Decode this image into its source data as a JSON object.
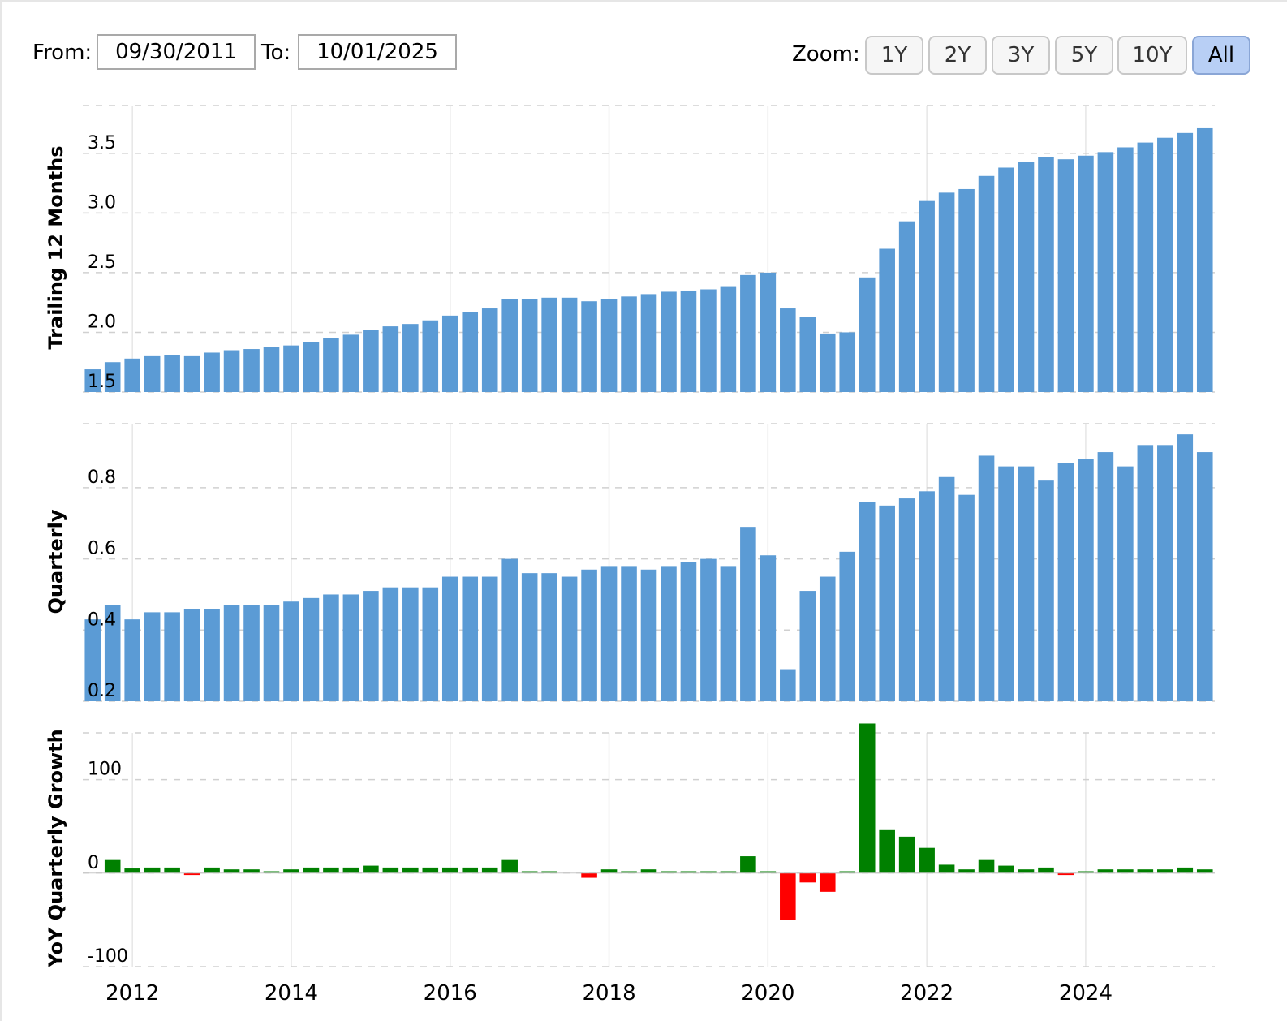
{
  "controls": {
    "from_label": "From:",
    "from_value": "09/30/2011",
    "to_label": "To:",
    "to_value": "10/01/2025",
    "zoom_label": "Zoom:",
    "zoom_buttons": [
      "1Y",
      "2Y",
      "3Y",
      "5Y",
      "10Y",
      "All"
    ],
    "zoom_active": "All"
  },
  "chart_data": [
    {
      "type": "bar",
      "ylabel": "Trailing 12 Months",
      "ylim": [
        1.5,
        3.9
      ],
      "yticks": [
        "1.5",
        "2.0",
        "2.5",
        "3.0",
        "3.5"
      ],
      "bar_color": "#5b9bd5",
      "grid": true,
      "x": [
        "2011-Q3",
        "2011-Q4",
        "2012-Q1",
        "2012-Q2",
        "2012-Q3",
        "2012-Q4",
        "2013-Q1",
        "2013-Q2",
        "2013-Q3",
        "2013-Q4",
        "2014-Q1",
        "2014-Q2",
        "2014-Q3",
        "2014-Q4",
        "2015-Q1",
        "2015-Q2",
        "2015-Q3",
        "2015-Q4",
        "2016-Q1",
        "2016-Q2",
        "2016-Q3",
        "2016-Q4",
        "2017-Q1",
        "2017-Q2",
        "2017-Q3",
        "2017-Q4",
        "2018-Q1",
        "2018-Q2",
        "2018-Q3",
        "2018-Q4",
        "2019-Q1",
        "2019-Q2",
        "2019-Q3",
        "2019-Q4",
        "2020-Q1",
        "2020-Q2",
        "2020-Q3",
        "2020-Q4",
        "2021-Q1",
        "2021-Q2",
        "2021-Q3",
        "2021-Q4",
        "2022-Q1",
        "2022-Q2",
        "2022-Q3",
        "2022-Q4",
        "2023-Q1",
        "2023-Q2",
        "2023-Q3",
        "2023-Q4",
        "2024-Q1",
        "2024-Q2",
        "2024-Q3",
        "2024-Q4",
        "2025-Q1",
        "2025-Q2",
        "2025-Q3"
      ],
      "values": [
        1.69,
        1.75,
        1.78,
        1.8,
        1.81,
        1.8,
        1.83,
        1.85,
        1.86,
        1.88,
        1.89,
        1.92,
        1.95,
        1.98,
        2.02,
        2.05,
        2.07,
        2.1,
        2.14,
        2.17,
        2.2,
        2.28,
        2.28,
        2.29,
        2.29,
        2.26,
        2.28,
        2.3,
        2.32,
        2.34,
        2.35,
        2.36,
        2.38,
        2.48,
        2.5,
        2.2,
        2.13,
        1.99,
        2.0,
        2.46,
        2.7,
        2.93,
        3.1,
        3.17,
        3.2,
        3.31,
        3.38,
        3.43,
        3.47,
        3.45,
        3.48,
        3.51,
        3.55,
        3.59,
        3.63,
        3.67,
        3.71
      ]
    },
    {
      "type": "bar",
      "ylabel": "Quarterly",
      "ylim": [
        0.2,
        0.98
      ],
      "yticks": [
        "0.2",
        "0.4",
        "0.6",
        "0.8"
      ],
      "bar_color": "#5b9bd5",
      "grid": true,
      "x": [
        "2011-Q3",
        "2011-Q4",
        "2012-Q1",
        "2012-Q2",
        "2012-Q3",
        "2012-Q4",
        "2013-Q1",
        "2013-Q2",
        "2013-Q3",
        "2013-Q4",
        "2014-Q1",
        "2014-Q2",
        "2014-Q3",
        "2014-Q4",
        "2015-Q1",
        "2015-Q2",
        "2015-Q3",
        "2015-Q4",
        "2016-Q1",
        "2016-Q2",
        "2016-Q3",
        "2016-Q4",
        "2017-Q1",
        "2017-Q2",
        "2017-Q3",
        "2017-Q4",
        "2018-Q1",
        "2018-Q2",
        "2018-Q3",
        "2018-Q4",
        "2019-Q1",
        "2019-Q2",
        "2019-Q3",
        "2019-Q4",
        "2020-Q1",
        "2020-Q2",
        "2020-Q3",
        "2020-Q4",
        "2021-Q1",
        "2021-Q2",
        "2021-Q3",
        "2021-Q4",
        "2022-Q1",
        "2022-Q2",
        "2022-Q3",
        "2022-Q4",
        "2023-Q1",
        "2023-Q2",
        "2023-Q3",
        "2023-Q4",
        "2024-Q1",
        "2024-Q2",
        "2024-Q3",
        "2024-Q4",
        "2025-Q1",
        "2025-Q2",
        "2025-Q3"
      ],
      "values": [
        0.43,
        0.47,
        0.43,
        0.45,
        0.45,
        0.46,
        0.46,
        0.47,
        0.47,
        0.47,
        0.48,
        0.49,
        0.5,
        0.5,
        0.51,
        0.52,
        0.52,
        0.52,
        0.55,
        0.55,
        0.55,
        0.6,
        0.56,
        0.56,
        0.55,
        0.57,
        0.58,
        0.58,
        0.57,
        0.58,
        0.59,
        0.6,
        0.58,
        0.69,
        0.61,
        0.29,
        0.51,
        0.55,
        0.62,
        0.76,
        0.75,
        0.77,
        0.79,
        0.83,
        0.78,
        0.89,
        0.86,
        0.86,
        0.82,
        0.87,
        0.88,
        0.9,
        0.86,
        0.92,
        0.92,
        0.95,
        0.9
      ]
    },
    {
      "type": "bar",
      "ylabel": "YoY Quarterly Growth",
      "ylim": [
        -100,
        150
      ],
      "yticks": [
        "-100",
        "0",
        "100"
      ],
      "positive_color": "#008000",
      "negative_color": "#ff0000",
      "grid": true,
      "x": [
        "2011-Q3",
        "2011-Q4",
        "2012-Q1",
        "2012-Q2",
        "2012-Q3",
        "2012-Q4",
        "2013-Q1",
        "2013-Q2",
        "2013-Q3",
        "2013-Q4",
        "2014-Q1",
        "2014-Q2",
        "2014-Q3",
        "2014-Q4",
        "2015-Q1",
        "2015-Q2",
        "2015-Q3",
        "2015-Q4",
        "2016-Q1",
        "2016-Q2",
        "2016-Q3",
        "2016-Q4",
        "2017-Q1",
        "2017-Q2",
        "2017-Q3",
        "2017-Q4",
        "2018-Q1",
        "2018-Q2",
        "2018-Q3",
        "2018-Q4",
        "2019-Q1",
        "2019-Q2",
        "2019-Q3",
        "2019-Q4",
        "2020-Q1",
        "2020-Q2",
        "2020-Q3",
        "2020-Q4",
        "2021-Q1",
        "2021-Q2",
        "2021-Q3",
        "2021-Q4",
        "2022-Q1",
        "2022-Q2",
        "2022-Q3",
        "2022-Q4",
        "2023-Q1",
        "2023-Q2",
        "2023-Q3",
        "2023-Q4",
        "2024-Q1",
        "2024-Q2",
        "2024-Q3",
        "2024-Q4",
        "2025-Q1",
        "2025-Q2",
        "2025-Q3"
      ],
      "values": [
        0,
        14,
        5,
        6,
        6,
        -2,
        6,
        4,
        4,
        2,
        4,
        6,
        6,
        6,
        8,
        6,
        6,
        6,
        6,
        6,
        6,
        14,
        2,
        2,
        0,
        -5,
        4,
        2,
        4,
        2,
        2,
        2,
        2,
        18,
        2,
        -50,
        -10,
        -20,
        2,
        160,
        46,
        39,
        27,
        9,
        4,
        14,
        8,
        4,
        6,
        -2,
        2,
        4,
        4,
        4,
        4,
        6,
        4
      ]
    }
  ],
  "x_axis": {
    "tick_labels": [
      "2012",
      "2014",
      "2016",
      "2018",
      "2020",
      "2022",
      "2024"
    ]
  }
}
